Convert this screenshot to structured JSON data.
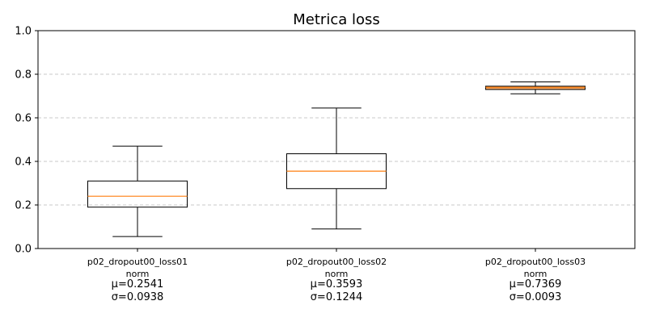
{
  "chart_data": {
    "type": "box",
    "title": "Metrica loss",
    "xlabel": "",
    "ylabel": "",
    "ylim": [
      0,
      1.0
    ],
    "yticks": [
      "0.0",
      "0.2",
      "0.4",
      "0.6",
      "0.8",
      "1.0"
    ],
    "grid": "horizontal dashed",
    "categories": [
      {
        "name": "p02_dropout00_loss01",
        "sub": "norm",
        "mean_label": "μ=0.2541",
        "std_label": "σ=0.0938"
      },
      {
        "name": "p02_dropout00_loss02",
        "sub": "norm",
        "mean_label": "μ=0.3593",
        "std_label": "σ=0.1244"
      },
      {
        "name": "p02_dropout00_loss03",
        "sub": "norm",
        "mean_label": "μ=0.7369",
        "std_label": "σ=0.0093"
      }
    ],
    "boxes": [
      {
        "whisker_low": 0.055,
        "q1": 0.19,
        "median": 0.24,
        "q3": 0.31,
        "whisker_high": 0.47
      },
      {
        "whisker_low": 0.09,
        "q1": 0.275,
        "median": 0.355,
        "q3": 0.435,
        "whisker_high": 0.645
      },
      {
        "whisker_low": 0.71,
        "q1": 0.73,
        "median": 0.74,
        "q3": 0.745,
        "whisker_high": 0.765
      }
    ],
    "colors": {
      "median": "#ff7f0e",
      "box_fill_3": "#f4a460",
      "grid": "#c8c8c8",
      "box_edge": "#000000"
    }
  }
}
